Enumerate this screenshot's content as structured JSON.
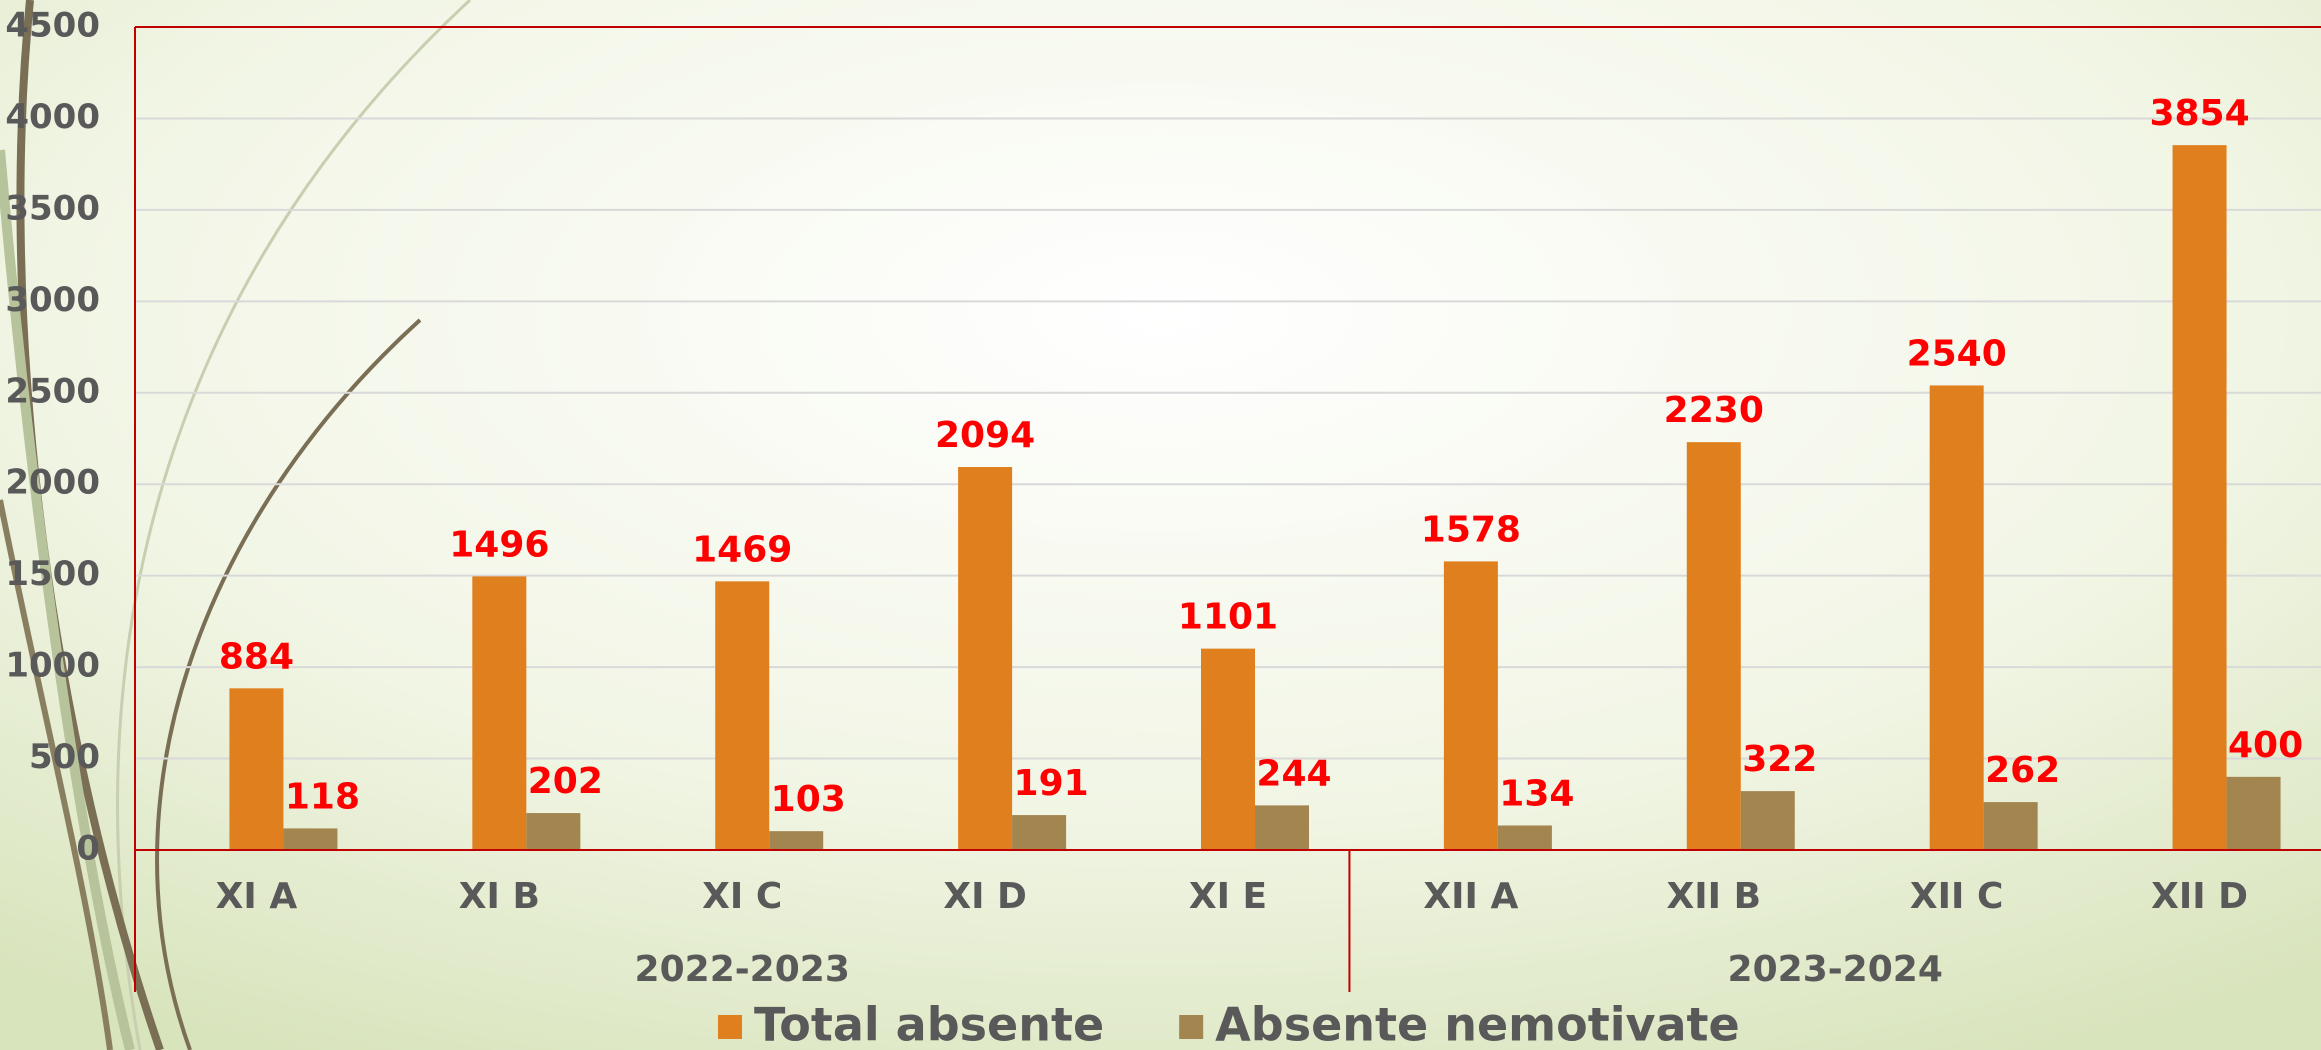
{
  "chart_data": {
    "type": "bar",
    "categories": [
      "XI A",
      "XI B",
      "XI C",
      "XI D",
      "XI E",
      "XII A",
      "XII B",
      "XII C",
      "XII D"
    ],
    "category_groups": [
      "2022-2023",
      "2022-2023",
      "2022-2023",
      "2022-2023",
      "2022-2023",
      "2023-2024",
      "2023-2024",
      "2023-2024",
      "2023-2024"
    ],
    "series": [
      {
        "name": "Total absente",
        "color": "#e07f1e",
        "values": [
          884,
          1496,
          1469,
          2094,
          1101,
          1578,
          2230,
          2540,
          3854
        ]
      },
      {
        "name": "Absente nemotivate",
        "color": "#a38550",
        "values": [
          118,
          202,
          103,
          191,
          244,
          134,
          322,
          262,
          400
        ]
      }
    ],
    "ylim": [
      0,
      4500
    ],
    "yticks": [
      0,
      500,
      1000,
      1500,
      2000,
      2500,
      3000,
      3500,
      4000,
      4500
    ],
    "grid": true,
    "legend": "bottom"
  }
}
